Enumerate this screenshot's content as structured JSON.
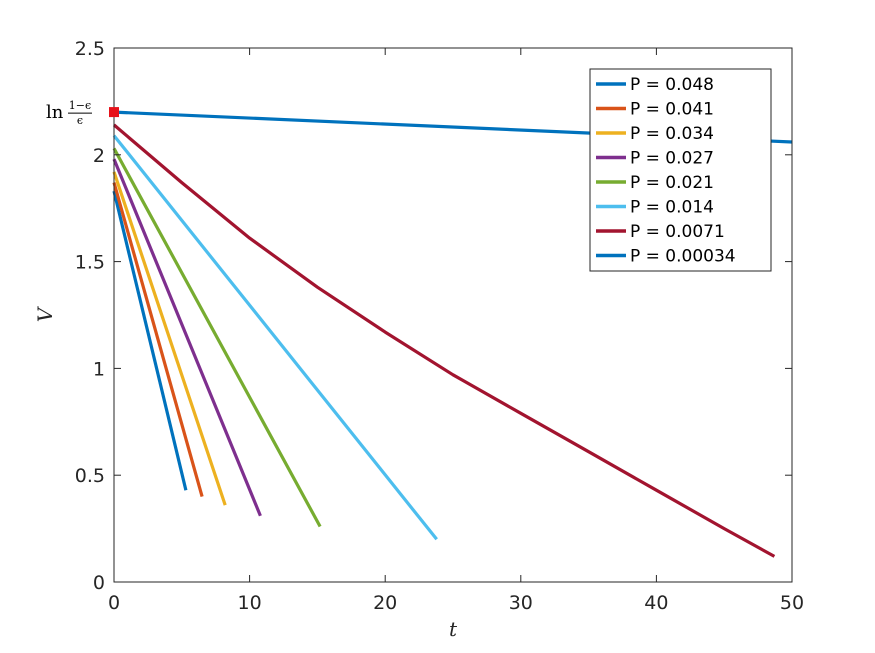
{
  "chart_data": {
    "type": "line",
    "xlabel": "t",
    "ylabel": "V",
    "xlim": [
      0,
      50
    ],
    "ylim": [
      0,
      2.5
    ],
    "x_ticks": [
      "0",
      "10",
      "20",
      "30",
      "40",
      "50"
    ],
    "y_ticks": [
      "0",
      "0.5",
      "1",
      "1.5",
      "2",
      "2.5"
    ],
    "grid": false,
    "legend_position": "top-right",
    "annotation": {
      "text_prefix": "ln",
      "numerator": "1−ϵ",
      "denominator": "ϵ",
      "marker_point": [
        0,
        2.2
      ],
      "marker_color": "#e6121b"
    },
    "series": [
      {
        "name": "P = 0.048",
        "color": "#0072BD",
        "x": [
          0,
          5.3
        ],
        "y": [
          1.83,
          0.43
        ]
      },
      {
        "name": "P = 0.041",
        "color": "#D95319",
        "x": [
          0,
          6.5
        ],
        "y": [
          1.87,
          0.4
        ]
      },
      {
        "name": "P = 0.034",
        "color": "#EDB120",
        "x": [
          0,
          8.2
        ],
        "y": [
          1.92,
          0.36
        ]
      },
      {
        "name": "P = 0.027",
        "color": "#7E2F8E",
        "x": [
          0,
          10.8
        ],
        "y": [
          1.98,
          0.31
        ]
      },
      {
        "name": "P = 0.021",
        "color": "#77AC30",
        "x": [
          0,
          15.2
        ],
        "y": [
          2.03,
          0.26
        ]
      },
      {
        "name": "P = 0.014",
        "color": "#4DBEEE",
        "x": [
          0,
          23.8
        ],
        "y": [
          2.09,
          0.2
        ]
      },
      {
        "name": "P = 0.0071",
        "color": "#A2142F",
        "x": [
          0,
          5,
          10,
          15,
          20,
          25,
          30,
          35,
          40,
          45,
          48.7
        ],
        "y": [
          2.14,
          1.87,
          1.61,
          1.38,
          1.17,
          0.97,
          0.79,
          0.61,
          0.43,
          0.25,
          0.12
        ]
      },
      {
        "name": "P = 0.00034",
        "color": "#0072BD",
        "x": [
          0,
          50
        ],
        "y": [
          2.2,
          2.06
        ]
      }
    ]
  }
}
